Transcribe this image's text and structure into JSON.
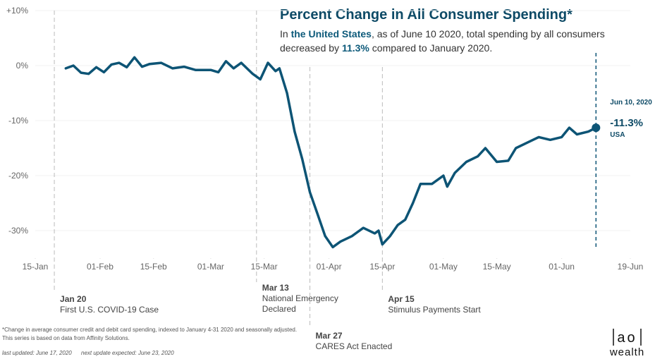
{
  "chart_data": {
    "type": "line",
    "title": "Percent Change in All Consumer Spending*",
    "subtitle": [
      [
        "In ",
        "the United States",
        ", as of June 10 2020, total spending by all consumers"
      ],
      [
        "decreased by ",
        "11.3%",
        " compared to January 2020."
      ]
    ],
    "x": [
      "01-23",
      "01-25",
      "01-27",
      "01-29",
      "01-31",
      "02-02",
      "02-04",
      "02-06",
      "02-08",
      "02-10",
      "02-12",
      "02-14",
      "02-17",
      "02-20",
      "02-23",
      "02-26",
      "03-01",
      "03-03",
      "03-05",
      "03-07",
      "03-09",
      "03-12",
      "03-14",
      "03-16",
      "03-18",
      "03-19",
      "03-21",
      "03-23",
      "03-25",
      "03-27",
      "03-29",
      "03-31",
      "04-02",
      "04-04",
      "04-07",
      "04-10",
      "04-13",
      "04-14",
      "04-15",
      "04-17",
      "04-19",
      "04-21",
      "04-23",
      "04-25",
      "04-28",
      "05-01",
      "05-02",
      "05-04",
      "05-07",
      "05-10",
      "05-12",
      "05-15",
      "05-18",
      "05-20",
      "05-23",
      "05-26",
      "05-29",
      "06-01",
      "06-03",
      "06-05",
      "06-08",
      "06-10"
    ],
    "series": [
      {
        "name": "USA",
        "color": "#0d5475",
        "values": [
          -0.5,
          0,
          -1.3,
          -1.5,
          -0.3,
          -1.2,
          0.2,
          0.5,
          -0.3,
          1.5,
          -0.2,
          0.3,
          0.5,
          -0.5,
          -0.2,
          -0.8,
          -0.8,
          -1.2,
          0.8,
          -0.5,
          0.5,
          -1.5,
          -2.5,
          0.5,
          -1,
          -0.5,
          -5,
          -12,
          -17,
          -23,
          -27,
          -31,
          -33,
          -32,
          -31,
          -29.5,
          -30.5,
          -30,
          -32.5,
          -31,
          -29,
          -28,
          -25,
          -21.5,
          -21.5,
          -20,
          -22,
          -19.5,
          -17.5,
          -16.5,
          -15,
          -17.5,
          -17.3,
          -15,
          -14,
          -13,
          -13.5,
          -13,
          -11.3,
          -12.5,
          -12,
          -11.3
        ],
        "end_date": "Jun 10, 2020",
        "end_label": "-11.3%"
      }
    ],
    "xlim": [
      "01-15",
      "06-19"
    ],
    "xticks": [
      {
        "value": "01-15",
        "label": "15-Jan"
      },
      {
        "value": "02-01",
        "label": "01-Feb"
      },
      {
        "value": "02-15",
        "label": "15-Feb"
      },
      {
        "value": "03-01",
        "label": "01-Mar"
      },
      {
        "value": "03-15",
        "label": "15-Mar"
      },
      {
        "value": "04-01",
        "label": "01-Apr"
      },
      {
        "value": "04-15",
        "label": "15-Apr"
      },
      {
        "value": "05-01",
        "label": "01-May"
      },
      {
        "value": "05-15",
        "label": "15-May"
      },
      {
        "value": "06-01",
        "label": "01-Jun"
      },
      {
        "value": "06-19",
        "label": "19-Jun"
      }
    ],
    "ylim": [
      -35,
      10
    ],
    "yticks": [
      {
        "value": 10,
        "label": "+10%"
      },
      {
        "value": 0,
        "label": "0%"
      },
      {
        "value": -10,
        "label": "-10%"
      },
      {
        "value": -20,
        "label": "-20%"
      },
      {
        "value": -30,
        "label": "-30%"
      }
    ],
    "grid": true,
    "events": [
      {
        "date": "01-20",
        "title": "Jan 20",
        "text": [
          "First U.S. COVID-19 Case"
        ]
      },
      {
        "date": "03-13",
        "title": "Mar 13",
        "text": [
          "National Emergency",
          "Declared"
        ]
      },
      {
        "date": "03-27",
        "title": "Mar 27",
        "text": [
          "CARES Act Enacted"
        ]
      },
      {
        "date": "04-15",
        "title": "Apr 15",
        "text": [
          "Stimulus Payments Start"
        ]
      }
    ],
    "footnotes": [
      "*Change in average consumer credit and debit card spending, indexed to January 4-31 2020 and seasonally adjusted.",
      "This series is based on data from Affinity Solutions."
    ],
    "last_updated": "last updated: June 17, 2020",
    "next_update": "next update expected: June 23, 2020"
  },
  "logo": {
    "mark": "ao",
    "text": "wealth"
  }
}
